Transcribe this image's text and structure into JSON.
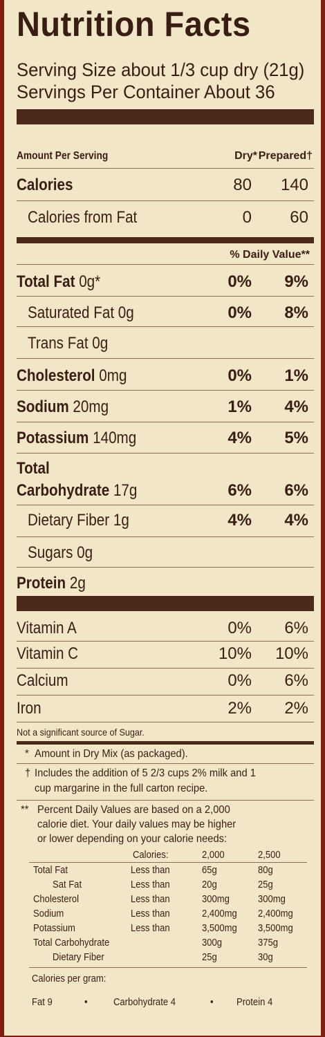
{
  "title": "Nutrition Facts",
  "serving_size": "Serving Size about 1/3 cup dry (21g)",
  "servings_per_container": "Servings Per Container About 36",
  "header": {
    "amount_per_serving": "Amount Per Serving",
    "dry": "Dry*",
    "prepared": "Prepared†"
  },
  "calories": {
    "label": "Calories",
    "dry": "80",
    "prepared": "140"
  },
  "calories_fat": {
    "label": "Calories from Fat",
    "dry": "0",
    "prepared": "60"
  },
  "dv_header": "% Daily Value**",
  "nutrients": {
    "total_fat": {
      "label": "Total Fat",
      "amount": "0g*",
      "dry": "0%",
      "prepared": "9%"
    },
    "sat_fat": {
      "label": "Saturated Fat 0g",
      "dry": "0%",
      "prepared": "8%"
    },
    "trans_fat": {
      "label": "Trans Fat 0g"
    },
    "cholesterol": {
      "label": "Cholesterol",
      "amount": "0mg",
      "dry": "0%",
      "prepared": "1%"
    },
    "sodium": {
      "label": "Sodium",
      "amount": "20mg",
      "dry": "1%",
      "prepared": "4%"
    },
    "potassium": {
      "label": "Potassium",
      "amount": "140mg",
      "dry": "4%",
      "prepared": "5%"
    },
    "total_carb_line1": "Total",
    "total_carb": {
      "label": "Carbohydrate",
      "amount": "17g",
      "dry": "6%",
      "prepared": "6%"
    },
    "fiber": {
      "label": "Dietary Fiber 1g",
      "dry": "4%",
      "prepared": "4%"
    },
    "sugars": {
      "label": "Sugars 0g"
    },
    "protein": {
      "label": "Protein",
      "amount": "2g"
    }
  },
  "vitamins": {
    "vitamin_a": {
      "label": "Vitamin A",
      "dry": "0%",
      "prepared": "6%"
    },
    "vitamin_c": {
      "label": "Vitamin C",
      "dry": "10%",
      "prepared": "10%"
    },
    "calcium": {
      "label": "Calcium",
      "dry": "0%",
      "prepared": "6%"
    },
    "iron": {
      "label": "Iron",
      "dry": "2%",
      "prepared": "2%"
    }
  },
  "not_significant": "Not a significant source of Sugar.",
  "footnotes": {
    "dry_mix_mark": "*",
    "dry_mix": "Amount in Dry Mix (as packaged).",
    "prepared_mark": "†",
    "prepared_1": "Includes the addition of 5 2/3 cups 2% milk and 1",
    "prepared_2": "cup margarine in the full carton recipe.",
    "dv_mark": "**",
    "dv_1": "Percent Daily Values are based on a 2,000",
    "dv_2": "calorie  diet. Your daily values may be higher",
    "dv_3": "or lower depending on your calorie needs:"
  },
  "dv_table": {
    "calories_label": "Calories:",
    "cal_2000": "2,000",
    "cal_2500": "2,500",
    "rows": [
      {
        "nutrient": "Total Fat",
        "limit": "Less than",
        "v2000": "65g",
        "v2500": "80g"
      },
      {
        "nutrient": "Sat Fat",
        "limit": "Less than",
        "v2000": "20g",
        "v2500": "25g"
      },
      {
        "nutrient": "Cholesterol",
        "limit": "Less than",
        "v2000": "300mg",
        "v2500": "300mg"
      },
      {
        "nutrient": "Sodium",
        "limit": "Less than",
        "v2000": "2,400mg",
        "v2500": "2,400mg"
      },
      {
        "nutrient": "Potassium",
        "limit": "Less than",
        "v2000": "3,500mg",
        "v2500": "3,500mg"
      },
      {
        "nutrient": "Total Carbohydrate",
        "limit": "",
        "v2000": "300g",
        "v2500": "375g"
      },
      {
        "nutrient": "Dietary Fiber",
        "limit": "",
        "v2000": "25g",
        "v2500": "30g"
      }
    ]
  },
  "calories_per_gram": {
    "label": "Calories per gram:",
    "fat": "Fat 9",
    "bullet": "•",
    "carb": "Carbohydrate 4",
    "protein": "Protein 4"
  },
  "colors": {
    "background": "#f1e6c8",
    "text": "#3a1d12",
    "bar": "#4a2a18",
    "border": "#7a1f12"
  }
}
